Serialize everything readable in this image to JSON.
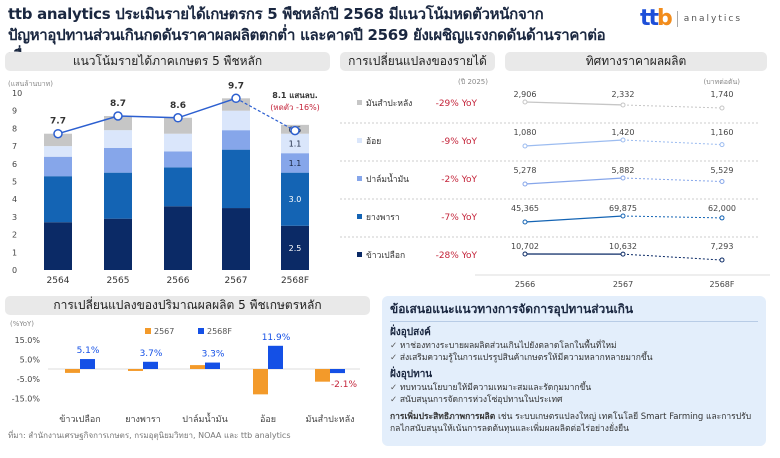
{
  "header": {
    "title_line1": "ttb analytics ประเมินรายได้เกษตรกร 5 พืชหลักปี 2568 มีแนวโน้มหดตัวหนักจาก",
    "title_line2": "ปัญหาอุปทานส่วนเกินกดดันราคาผลผลิตตกต่ำ และคาดปี 2569 ยังเผชิญแรงกดดันด้านราคาต่อเนื่อง",
    "logo_mark": "ttb",
    "logo_text": "analytics"
  },
  "colors": {
    "rice": "#0b2a66",
    "rubber": "#1464b4",
    "palm": "#86a6ea",
    "sugarcane": "#dae6fb",
    "cassava": "#c6c6c6",
    "line": "#2c5fd0",
    "orange": "#f39a2a",
    "blue": "#1450e6",
    "negative": "#c4243a"
  },
  "chart_data": [
    {
      "type": "bar",
      "stacked": true,
      "title": "แนวโน้มรายได้ภาคเกษตร 5 พืชหลัก",
      "ylabel": "(แสนล้านบาท)",
      "ylim": [
        0,
        10
      ],
      "yticks": [
        "0",
        "1",
        "2",
        "3",
        "4",
        "5",
        "6",
        "7",
        "8",
        "9",
        "10"
      ],
      "categories": [
        "2564",
        "2565",
        "2566",
        "2567",
        "2568F"
      ],
      "series": [
        {
          "key": "rice",
          "values": [
            2.7,
            2.9,
            3.6,
            3.5,
            2.5
          ]
        },
        {
          "key": "rubber",
          "values": [
            2.6,
            2.6,
            2.2,
            3.3,
            3.0
          ]
        },
        {
          "key": "palm",
          "values": [
            1.1,
            1.4,
            0.9,
            1.1,
            1.1
          ]
        },
        {
          "key": "sugarcane",
          "values": [
            0.6,
            1.0,
            1.0,
            1.1,
            1.1
          ]
        },
        {
          "key": "cassava",
          "values": [
            0.7,
            0.8,
            0.9,
            0.7,
            0.5
          ]
        }
      ],
      "segment_labels_2568F": [
        "2.5",
        "3.0",
        "1.1",
        "1.1",
        "0.5"
      ],
      "totals": [
        7.7,
        8.7,
        8.6,
        9.7,
        8.1
      ],
      "total_labels": [
        "7.7",
        "8.7",
        "8.6",
        "9.7",
        "8.1 แสนลบ."
      ],
      "annotation": "(หดตัว -16%)"
    },
    {
      "type": "table",
      "title": "การเปลี่ยนแปลงของรายได้",
      "note": "(ปี 2025)",
      "rows": [
        {
          "crop": "มันสำปะหลัง",
          "key": "cassava",
          "yoy": "-29% YoY"
        },
        {
          "crop": "อ้อย",
          "key": "sugarcane",
          "yoy": "-9% YoY"
        },
        {
          "crop": "ปาล์มน้ำมัน",
          "key": "palm",
          "yoy": "-2% YoY"
        },
        {
          "crop": "ยางพารา",
          "key": "rubber",
          "yoy": "-7% YoY"
        },
        {
          "crop": "ข้าวเปลือก",
          "key": "rice",
          "yoy": "-28% YoY"
        }
      ]
    },
    {
      "type": "line",
      "title": "ทิศทางราคาผลผลิต",
      "unit": "(บาทต่อตัน)",
      "categories": [
        "2566",
        "2567",
        "2568F"
      ],
      "series": [
        {
          "key": "cassava",
          "values": [
            2906,
            2332,
            1740
          ],
          "labels": [
            "2,906",
            "2,332",
            "1,740"
          ]
        },
        {
          "key": "sugarcane",
          "values": [
            1080,
            1420,
            1160
          ],
          "labels": [
            "1,080",
            "1,420",
            "1,160"
          ]
        },
        {
          "key": "palm",
          "values": [
            5278,
            5882,
            5529
          ],
          "labels": [
            "5,278",
            "5,882",
            "5,529"
          ]
        },
        {
          "key": "rubber",
          "values": [
            45365,
            69875,
            62000
          ],
          "labels": [
            "45,365",
            "69,875",
            "62,000"
          ]
        },
        {
          "key": "rice",
          "values": [
            10702,
            10632,
            7293
          ],
          "labels": [
            "10,702",
            "10,632",
            "7,293"
          ]
        }
      ]
    },
    {
      "type": "bar",
      "title": "การเปลี่ยนแปลงของปริมาณผลผลิต 5 พืชเกษตรหลัก",
      "ylabel": "(%YoY)",
      "ylim": [
        -15,
        15
      ],
      "yticks": [
        "15.0%",
        "5.0%",
        "-5.0%",
        "-15.0%"
      ],
      "categories": [
        "ข้าวเปลือก",
        "ยางพารา",
        "ปาล์มน้ำมัน",
        "อ้อย",
        "มันสำปะหลัง"
      ],
      "series": [
        {
          "name": "2567",
          "values": [
            -2.0,
            -1.0,
            2.0,
            -13.0,
            -6.5
          ]
        },
        {
          "name": "2568F",
          "values": [
            5.1,
            3.7,
            3.3,
            11.9,
            -2.1
          ],
          "labels": [
            "5.1%",
            "3.7%",
            "3.3%",
            "11.9%",
            "-2.1%"
          ]
        }
      ]
    }
  ],
  "recommendations": {
    "title": "ข้อเสนอแนะแนวทางการจัดการอุปทานส่วนเกิน",
    "demand_title": "ฝั่งอุปสงค์",
    "demand": [
      "หาช่องทางระบายผลผลิตส่วนเกินไปยังตลาดโลกในพื้นที่ใหม่",
      "ส่งเสริมความรู้ในการแปรรูปสินค้าเกษตรให้มีความหลากหลายมากขึ้น"
    ],
    "supply_title": "ฝั่งอุปทาน",
    "supply": [
      "ทบทวนนโยบายให้มีความเหมาะสมและรัดกุมมากขึ้น",
      "สนับสนุนการจัดการห่วงโซ่อุปทานในประเทศ"
    ],
    "productivity_bold": "การเพิ่มประสิทธิภาพการผลิต",
    "productivity_text": " เช่น ระบบเกษตรแปลงใหญ่ เทคโนโลยี Smart Farming และการปรับกลไกสนับสนุนให้เน้นการลดต้นทุนและเพิ่มผลผลิตต่อไร่อย่างยั่งยืน"
  },
  "source": "ที่มา: สำนักงานเศรษฐกิจการเกษตร, กรมอุตุนิยมวิทยา, NOAA และ ttb analytics"
}
